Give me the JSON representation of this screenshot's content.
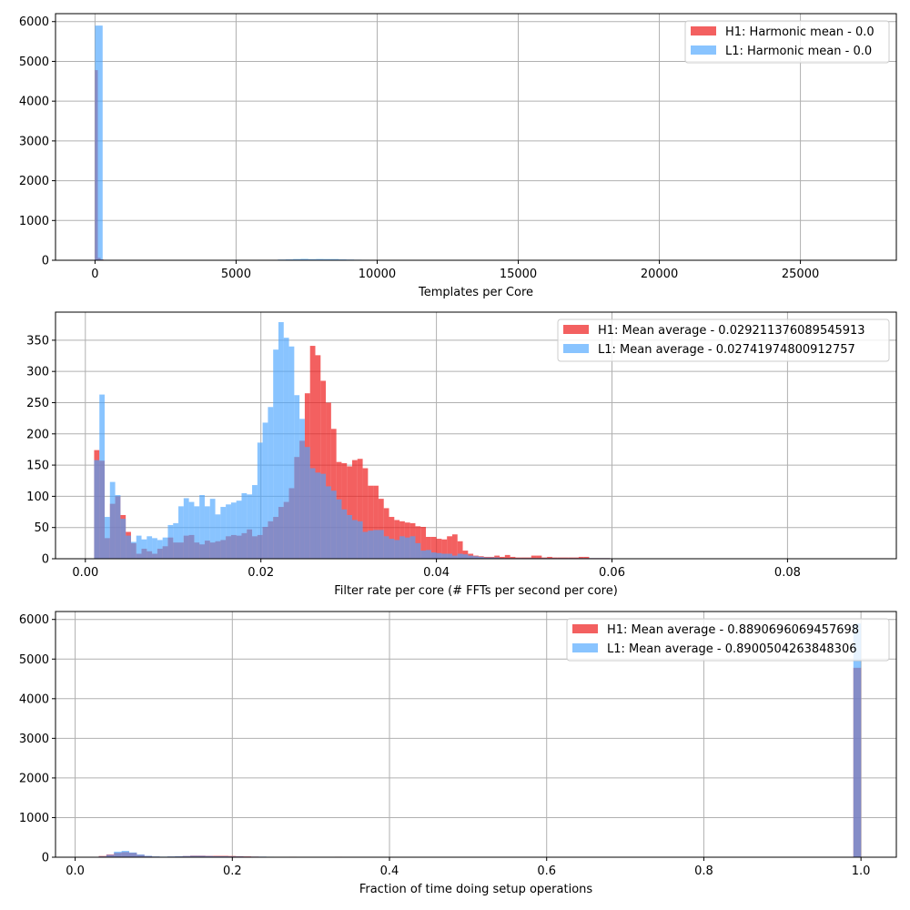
{
  "colors": {
    "H1": "#ee1c1c",
    "L1": "#4aa5ff",
    "H1_alpha": 0.7,
    "L1_alpha": 0.65,
    "grid": "#b0b0b0"
  },
  "chart_data": [
    {
      "type": "bar",
      "subtype": "histogram",
      "title": "",
      "xlabel": "Templates per Core",
      "ylabel": "",
      "xlim": [
        -1400,
        28400
      ],
      "ylim": [
        0,
        6200
      ],
      "xticks": [
        0,
        5000,
        10000,
        15000,
        20000,
        25000
      ],
      "yticks": [
        0,
        1000,
        2000,
        3000,
        4000,
        5000,
        6000
      ],
      "grid": true,
      "legend_position": "upper right",
      "series": [
        {
          "name": "H1: Harmonic mean  - 0.0",
          "key": "H1",
          "bin_start": 0,
          "bin_width": 100,
          "values": [
            4780,
            60,
            20
          ]
        },
        {
          "name": "L1: Harmonic mean  - 0.0",
          "key": "L1",
          "bin_start": 0,
          "bin_width": 270,
          "values": [
            5900,
            0,
            0,
            0,
            0,
            0,
            0,
            0,
            0,
            0,
            0,
            0,
            0,
            0,
            0,
            5,
            8,
            4,
            12,
            6,
            6,
            10,
            8,
            10,
            18,
            22,
            30,
            35,
            28,
            32,
            30,
            30,
            22,
            18,
            14,
            12,
            10,
            8,
            8,
            6,
            10,
            4
          ]
        }
      ]
    },
    {
      "type": "bar",
      "subtype": "histogram",
      "title": "",
      "xlabel": "Filter rate per core (# FFTs per second per core)",
      "ylabel": "",
      "xlim": [
        -0.0034,
        0.0924
      ],
      "ylim": [
        0,
        395
      ],
      "xticks": [
        0.0,
        0.02,
        0.04,
        0.06,
        0.08
      ],
      "xticklabels": [
        "0.00",
        "0.02",
        "0.04",
        "0.06",
        "0.08"
      ],
      "yticks": [
        0,
        50,
        100,
        150,
        200,
        250,
        300,
        350
      ],
      "grid": true,
      "legend_position": "upper right",
      "series": [
        {
          "name": "H1: Mean average - 0.029211376089545913",
          "key": "H1",
          "bin_start": 0.001,
          "bin_width": 0.0006,
          "values": [
            174,
            157,
            33,
            88,
            100,
            70,
            43,
            25,
            8,
            16,
            12,
            8,
            16,
            20,
            34,
            26,
            26,
            37,
            38,
            26,
            23,
            29,
            26,
            28,
            30,
            36,
            38,
            37,
            41,
            47,
            36,
            38,
            51,
            60,
            67,
            83,
            91,
            113,
            163,
            189,
            265,
            341,
            326,
            285,
            250,
            208,
            155,
            153,
            148,
            158,
            160,
            145,
            117,
            117,
            96,
            81,
            67,
            62,
            60,
            58,
            57,
            52,
            51,
            35,
            35,
            32,
            31,
            36,
            39,
            28,
            13,
            8,
            5,
            4,
            3,
            3,
            5,
            3,
            6,
            3,
            2,
            2,
            2,
            5,
            5,
            2,
            3,
            2,
            2,
            2,
            2,
            2,
            3,
            3,
            1,
            1,
            1,
            1
          ]
        },
        {
          "name": "L1: Mean average - 0.02741974800912757",
          "key": "L1",
          "bin_start": 0.001,
          "bin_width": 0.0006,
          "values": [
            158,
            263,
            67,
            123,
            102,
            64,
            37,
            27,
            37,
            31,
            36,
            33,
            30,
            34,
            54,
            57,
            84,
            97,
            91,
            84,
            102,
            84,
            96,
            71,
            83,
            87,
            90,
            93,
            105,
            103,
            118,
            186,
            218,
            243,
            335,
            379,
            354,
            340,
            262,
            224,
            179,
            145,
            138,
            136,
            116,
            109,
            95,
            79,
            70,
            62,
            60,
            43,
            45,
            46,
            46,
            36,
            32,
            30,
            36,
            34,
            36,
            25,
            13,
            14,
            10,
            9,
            8,
            8,
            5,
            8,
            7,
            5,
            4,
            3,
            2,
            2,
            2,
            1,
            1,
            1,
            1,
            1,
            1,
            1,
            1,
            1,
            1,
            1,
            1,
            1,
            1,
            1,
            1,
            1,
            1,
            1,
            1,
            1
          ]
        }
      ]
    },
    {
      "type": "bar",
      "subtype": "histogram",
      "title": "",
      "xlabel": "Fraction of time doing setup operations",
      "ylabel": "",
      "xlim": [
        -0.025,
        1.045
      ],
      "ylim": [
        0,
        6200
      ],
      "xticks": [
        0.0,
        0.2,
        0.4,
        0.6,
        0.8,
        1.0
      ],
      "xticklabels": [
        "0.0",
        "0.2",
        "0.4",
        "0.6",
        "0.8",
        "1.0"
      ],
      "yticks": [
        0,
        1000,
        2000,
        3000,
        4000,
        5000,
        6000
      ],
      "grid": true,
      "legend_position": "upper right",
      "series": [
        {
          "name": "H1: Mean average - 0.8890696069457698",
          "key": "H1",
          "bin_start": 0.03,
          "bin_width": 0.0097,
          "values": [
            30,
            70,
            110,
            130,
            110,
            60,
            30,
            15,
            10,
            15,
            20,
            30,
            40,
            40,
            35,
            35,
            35,
            30,
            25,
            20,
            15,
            12,
            10,
            10,
            10,
            12,
            10,
            8,
            5,
            10,
            6,
            12,
            8,
            2,
            0,
            0,
            0,
            0,
            0,
            0,
            0,
            0,
            0,
            0,
            0,
            0,
            0,
            0,
            0,
            0,
            0,
            0,
            0,
            0,
            0,
            0,
            0,
            0,
            0,
            0,
            0,
            0,
            0,
            0,
            0,
            0,
            0,
            0,
            0,
            0,
            0,
            0,
            0,
            0,
            0,
            0,
            0,
            0,
            0,
            0,
            0,
            0,
            0,
            0,
            0,
            0,
            0,
            0,
            0,
            0,
            0,
            0,
            0,
            0,
            0,
            0,
            0,
            0,
            0,
            4780
          ]
        },
        {
          "name": "L1: Mean average - 0.8900504263848306",
          "key": "L1",
          "bin_start": 0.03,
          "bin_width": 0.0097,
          "values": [
            20,
            60,
            140,
            160,
            120,
            70,
            35,
            20,
            15,
            20,
            25,
            30,
            35,
            35,
            30,
            25,
            25,
            20,
            20,
            15,
            15,
            15,
            12,
            10,
            10,
            10,
            8,
            5,
            5,
            5,
            3,
            3,
            2,
            1,
            0,
            0,
            0,
            0,
            0,
            0,
            0,
            0,
            0,
            0,
            0,
            0,
            0,
            0,
            0,
            0,
            0,
            0,
            0,
            0,
            0,
            0,
            0,
            0,
            0,
            0,
            0,
            0,
            0,
            0,
            0,
            0,
            0,
            0,
            0,
            0,
            0,
            0,
            0,
            0,
            0,
            0,
            0,
            0,
            0,
            0,
            0,
            0,
            0,
            0,
            0,
            0,
            0,
            0,
            0,
            0,
            0,
            0,
            0,
            0,
            0,
            0,
            0,
            0,
            0,
            5900
          ]
        }
      ]
    }
  ]
}
